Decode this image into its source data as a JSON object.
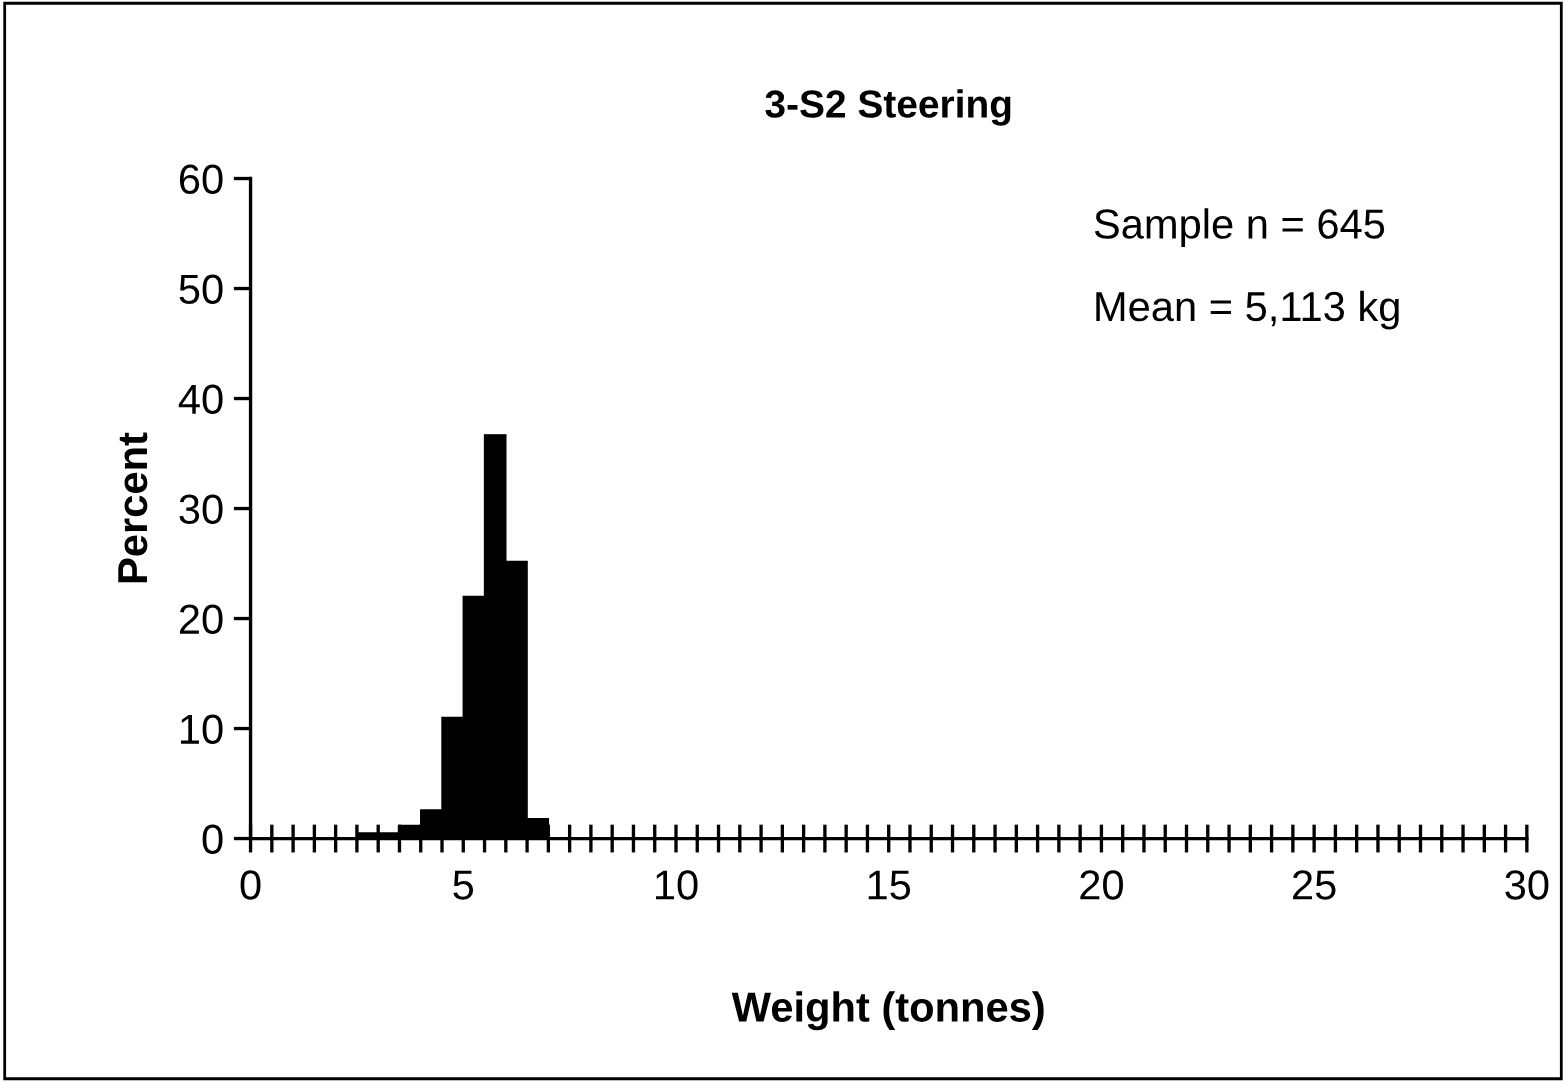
{
  "chart_data": {
    "type": "histogram",
    "title": "3-S2 Steering",
    "xlabel": "Weight (tonnes)",
    "ylabel": "Percent",
    "bins": [
      2.5,
      3.0,
      3.5,
      4.0,
      4.5,
      5.0,
      5.5,
      6.0,
      6.5,
      7.0
    ],
    "values": [
      0.5,
      0.5,
      1.2,
      2.6,
      11,
      22,
      36.7,
      25.2,
      1.8
    ],
    "color": "#000000",
    "xlim": [
      0,
      30
    ],
    "ylim": [
      0,
      60
    ],
    "xticks": [
      0,
      {
        "value": 0.5,
        "label": null
      },
      {
        "value": 1,
        "label": null
      },
      {
        "value": 1.5,
        "label": null
      },
      {
        "value": 2,
        "label": null
      },
      {
        "value": 2.5,
        "label": null
      },
      {
        "value": 3,
        "label": null
      },
      {
        "value": 3.5,
        "label": null
      },
      {
        "value": 4,
        "label": null
      },
      {
        "value": 4.5,
        "label": null
      },
      5,
      {
        "value": 5.5,
        "label": null
      },
      {
        "value": 6,
        "label": null
      },
      {
        "value": 6.5,
        "label": null
      },
      {
        "value": 7,
        "label": null
      },
      {
        "value": 7.5,
        "label": null
      },
      {
        "value": 8,
        "label": null
      },
      {
        "value": 8.5,
        "label": null
      },
      {
        "value": 9,
        "label": null
      },
      {
        "value": 9.5,
        "label": null
      },
      10,
      {
        "value": 10.5,
        "label": null
      },
      {
        "value": 11,
        "label": null
      },
      {
        "value": 11.5,
        "label": null
      },
      {
        "value": 12,
        "label": null
      },
      {
        "value": 12.5,
        "label": null
      },
      {
        "value": 13,
        "label": null
      },
      {
        "value": 13.5,
        "label": null
      },
      {
        "value": 14,
        "label": null
      },
      {
        "value": 14.5,
        "label": null
      },
      15,
      {
        "value": 15.5,
        "label": null
      },
      {
        "value": 16,
        "label": null
      },
      {
        "value": 16.5,
        "label": null
      },
      {
        "value": 17,
        "label": null
      },
      {
        "value": 17.5,
        "label": null
      },
      {
        "value": 18,
        "label": null
      },
      {
        "value": 18.5,
        "label": null
      },
      {
        "value": 19,
        "label": null
      },
      {
        "value": 19.5,
        "label": null
      },
      20,
      {
        "value": 20.5,
        "label": null
      },
      {
        "value": 21,
        "label": null
      },
      {
        "value": 21.5,
        "label": null
      },
      {
        "value": 22,
        "label": null
      },
      {
        "value": 22.5,
        "label": null
      },
      {
        "value": 23,
        "label": null
      },
      {
        "value": 23.5,
        "label": null
      },
      {
        "value": 24,
        "label": null
      },
      {
        "value": 24.5,
        "label": null
      },
      25,
      {
        "value": 25.5,
        "label": null
      },
      {
        "value": 26,
        "label": null
      },
      {
        "value": 26.5,
        "label": null
      },
      {
        "value": 27,
        "label": null
      },
      {
        "value": 27.5,
        "label": null
      },
      {
        "value": 28,
        "label": null
      },
      {
        "value": 28.5,
        "label": null
      },
      {
        "value": 29,
        "label": null
      },
      {
        "value": 29.5,
        "label": null
      },
      30
    ],
    "yticks": [
      0,
      10,
      20,
      30,
      40,
      50,
      60
    ],
    "grid": false,
    "legend": false,
    "annotations": [
      "Sample n = 645",
      "Mean = 5,113 kg"
    ]
  }
}
